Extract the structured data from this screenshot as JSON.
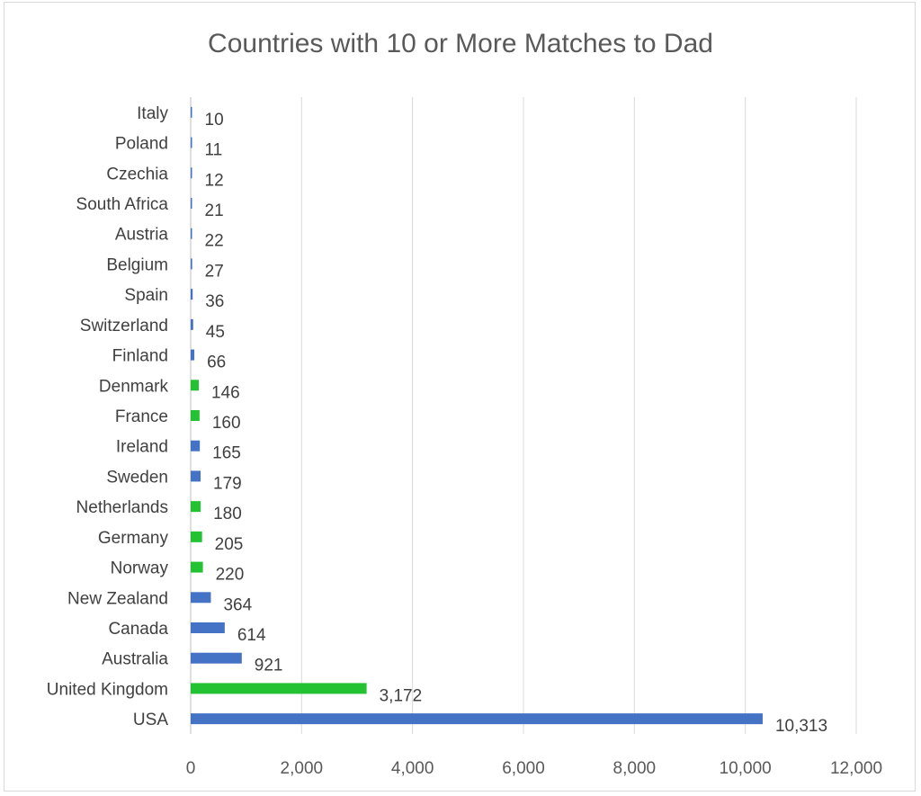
{
  "chart_data": {
    "type": "bar",
    "orientation": "horizontal",
    "title": "Countries with 10 or More Matches to Dad",
    "categories": [
      "Italy",
      "Poland",
      "Czechia",
      "South Africa",
      "Austria",
      "Belgium",
      "Spain",
      "Switzerland",
      "Finland",
      "Denmark",
      "France",
      "Ireland",
      "Sweden",
      "Netherlands",
      "Germany",
      "Norway",
      "New Zealand",
      "Canada",
      "Australia",
      "United Kingdom",
      "USA"
    ],
    "values": [
      10,
      11,
      12,
      21,
      22,
      27,
      36,
      45,
      66,
      146,
      160,
      165,
      179,
      180,
      205,
      220,
      364,
      614,
      921,
      3172,
      10313
    ],
    "value_labels": [
      "10",
      "11",
      "12",
      "21",
      "22",
      "27",
      "36",
      "45",
      "66",
      "146",
      "160",
      "165",
      "179",
      "180",
      "205",
      "220",
      "364",
      "614",
      "921",
      "3,172",
      "10,313"
    ],
    "bar_colors": [
      "#4472c4",
      "#4472c4",
      "#4472c4",
      "#4472c4",
      "#4472c4",
      "#4472c4",
      "#4472c4",
      "#4472c4",
      "#4472c4",
      "#22c232",
      "#22c232",
      "#4472c4",
      "#4472c4",
      "#22c232",
      "#22c232",
      "#22c232",
      "#4472c4",
      "#4472c4",
      "#4472c4",
      "#22c232",
      "#4472c4"
    ],
    "xlim": [
      0,
      12000
    ],
    "xticks": [
      0,
      2000,
      4000,
      6000,
      8000,
      10000,
      12000
    ],
    "xtick_labels": [
      "0",
      "2,000",
      "4,000",
      "6,000",
      "8,000",
      "10,000",
      "12,000"
    ],
    "xlabel": "",
    "ylabel": "",
    "grid": "vertical",
    "legend": "none"
  }
}
